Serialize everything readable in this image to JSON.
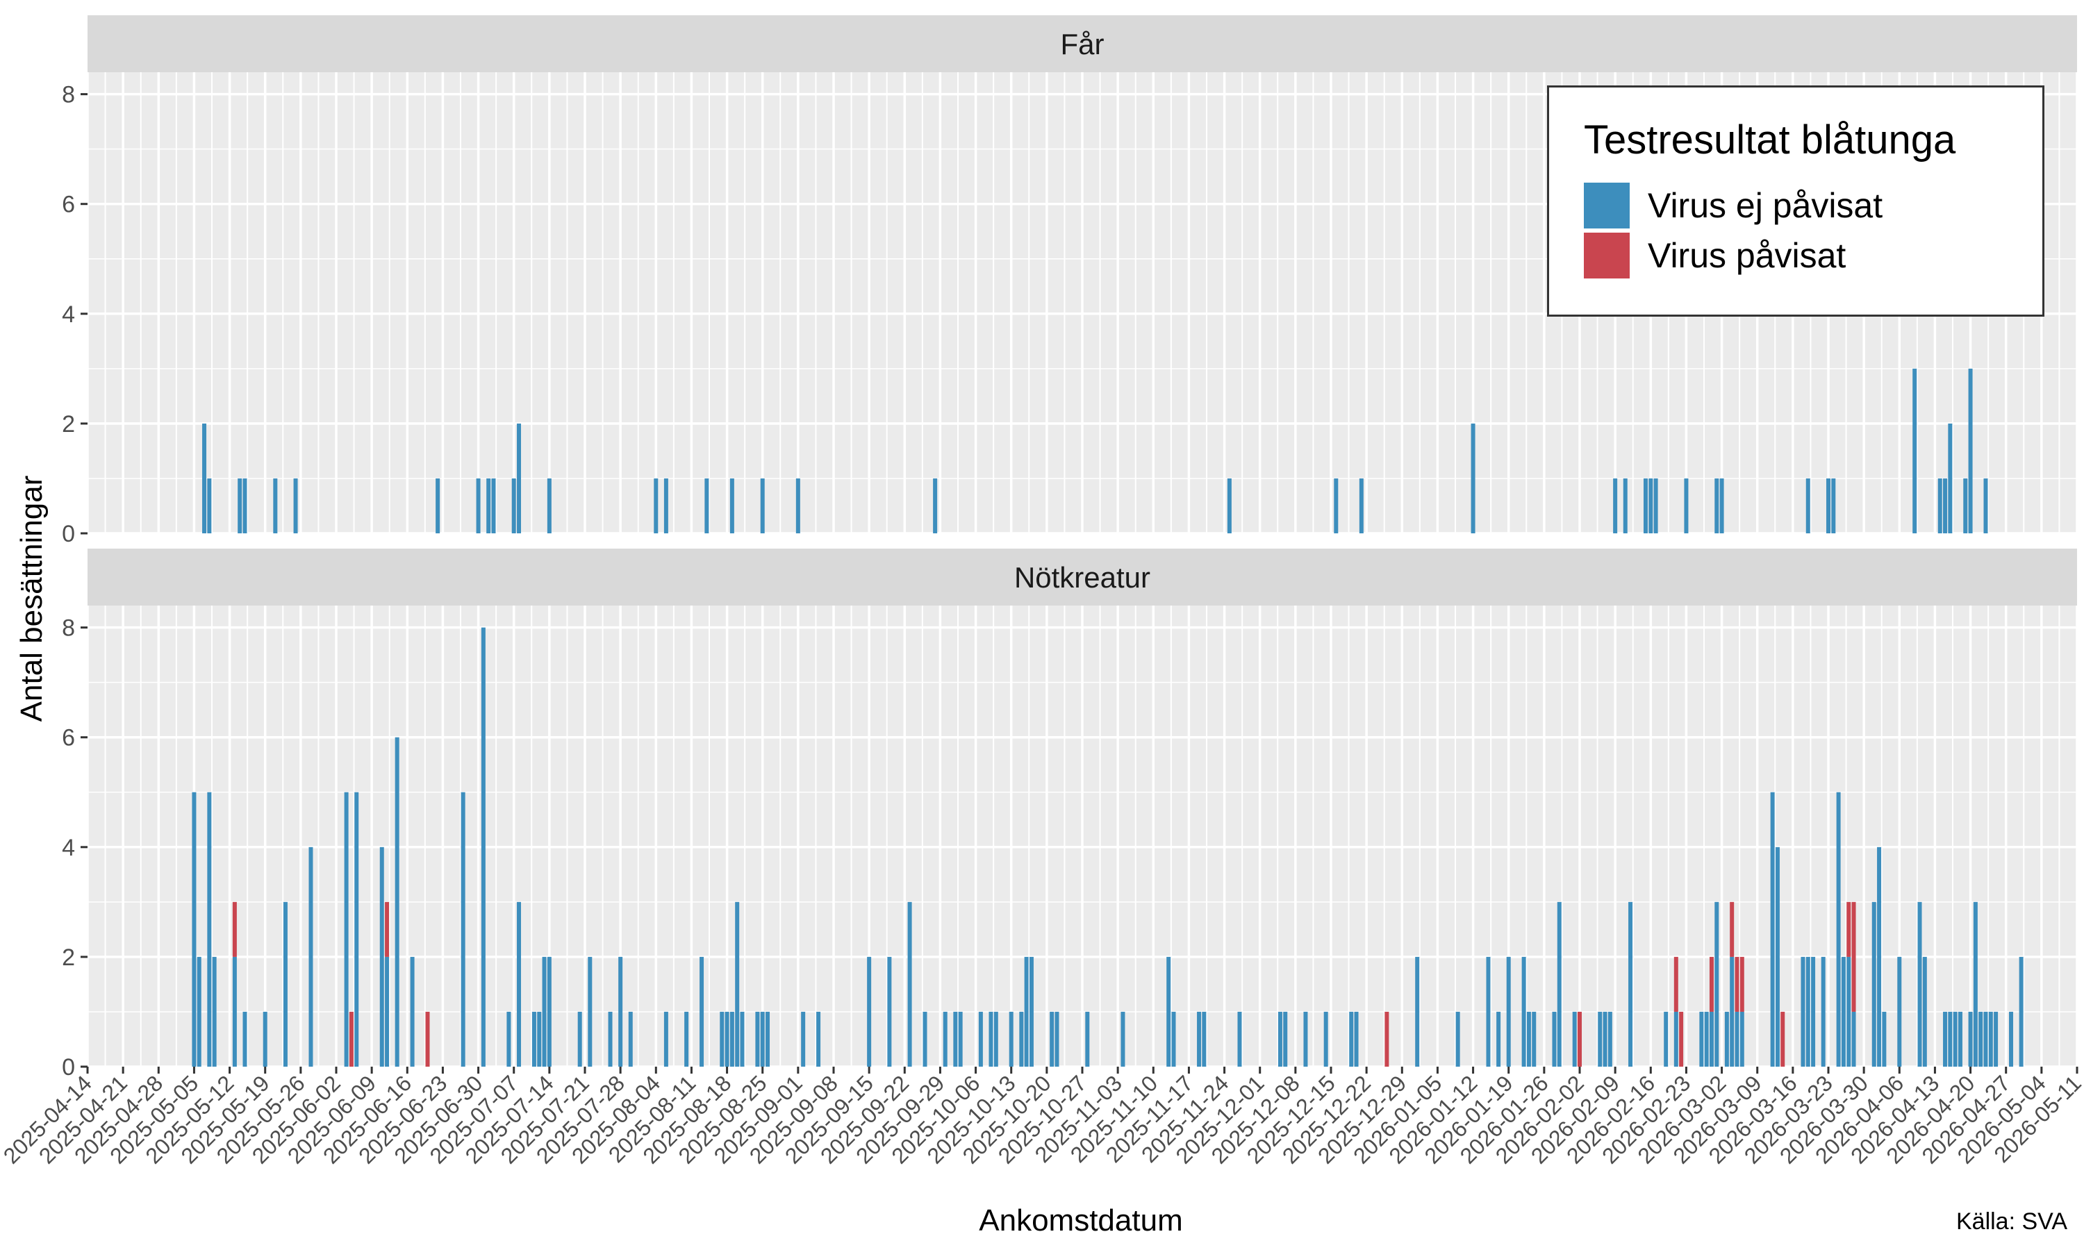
{
  "chart_data": {
    "type": "bar",
    "stacked": true,
    "facet_titles": [
      "Får",
      "Nötkreatur"
    ],
    "xlabel": "Ankomstdatum",
    "ylabel": "Antal besättningar",
    "ylim": [
      0,
      8.4
    ],
    "yticks": [
      0,
      2,
      4,
      6,
      8
    ],
    "xlim": [
      "2025-04-14",
      "2026-05-11"
    ],
    "xticks": [
      "2025-04-14",
      "2025-04-21",
      "2025-04-28",
      "2025-05-05",
      "2025-05-12",
      "2025-05-19",
      "2025-05-26",
      "2025-06-02",
      "2025-06-09",
      "2025-06-16",
      "2025-06-23",
      "2025-06-30",
      "2025-07-07",
      "2025-07-14",
      "2025-07-21",
      "2025-07-28",
      "2025-08-04",
      "2025-08-11",
      "2025-08-18",
      "2025-08-25",
      "2025-09-01",
      "2025-09-08",
      "2025-09-15",
      "2025-09-22",
      "2025-09-29",
      "2025-10-06",
      "2025-10-13",
      "2025-10-20",
      "2025-10-27",
      "2025-11-03",
      "2025-11-10",
      "2025-11-17",
      "2025-11-24",
      "2025-12-01",
      "2025-12-08",
      "2025-12-15",
      "2025-12-22",
      "2025-12-29",
      "2026-01-05",
      "2026-01-12",
      "2026-01-19",
      "2026-01-26",
      "2026-02-02",
      "2026-02-09",
      "2026-02-16",
      "2026-02-23",
      "2026-03-02",
      "2026-03-09",
      "2026-03-16",
      "2026-03-23",
      "2026-03-30",
      "2026-04-06",
      "2026-04-13",
      "2026-04-20",
      "2026-04-27",
      "2026-05-04",
      "2026-05-11"
    ],
    "grid": true,
    "legend_position": "top-right",
    "legend_title": "Testresultat blåtunga",
    "series": [
      {
        "name": "Virus ej påvisat",
        "color": "#3D8EBD"
      },
      {
        "name": "Virus påvisat",
        "color": "#C9454F"
      }
    ],
    "panels": [
      {
        "title": "Får",
        "data": [
          {
            "date": "2025-05-07",
            "neg": 2,
            "pos": 0
          },
          {
            "date": "2025-05-08",
            "neg": 1,
            "pos": 0
          },
          {
            "date": "2025-05-14",
            "neg": 1,
            "pos": 0
          },
          {
            "date": "2025-05-15",
            "neg": 1,
            "pos": 0
          },
          {
            "date": "2025-05-21",
            "neg": 1,
            "pos": 0
          },
          {
            "date": "2025-05-25",
            "neg": 1,
            "pos": 0
          },
          {
            "date": "2025-06-22",
            "neg": 1,
            "pos": 0
          },
          {
            "date": "2025-06-30",
            "neg": 1,
            "pos": 0
          },
          {
            "date": "2025-07-02",
            "neg": 1,
            "pos": 0
          },
          {
            "date": "2025-07-03",
            "neg": 1,
            "pos": 0
          },
          {
            "date": "2025-07-07",
            "neg": 1,
            "pos": 0
          },
          {
            "date": "2025-07-08",
            "neg": 2,
            "pos": 0
          },
          {
            "date": "2025-07-14",
            "neg": 1,
            "pos": 0
          },
          {
            "date": "2025-08-04",
            "neg": 1,
            "pos": 0
          },
          {
            "date": "2025-08-06",
            "neg": 1,
            "pos": 0
          },
          {
            "date": "2025-08-14",
            "neg": 1,
            "pos": 0
          },
          {
            "date": "2025-08-19",
            "neg": 1,
            "pos": 0
          },
          {
            "date": "2025-08-25",
            "neg": 1,
            "pos": 0
          },
          {
            "date": "2025-09-01",
            "neg": 1,
            "pos": 0
          },
          {
            "date": "2025-09-28",
            "neg": 1,
            "pos": 0
          },
          {
            "date": "2025-11-25",
            "neg": 1,
            "pos": 0
          },
          {
            "date": "2025-12-16",
            "neg": 1,
            "pos": 0
          },
          {
            "date": "2025-12-21",
            "neg": 1,
            "pos": 0
          },
          {
            "date": "2026-01-12",
            "neg": 2,
            "pos": 0
          },
          {
            "date": "2026-02-09",
            "neg": 1,
            "pos": 0
          },
          {
            "date": "2026-02-11",
            "neg": 1,
            "pos": 0
          },
          {
            "date": "2026-02-15",
            "neg": 1,
            "pos": 0
          },
          {
            "date": "2026-02-16",
            "neg": 1,
            "pos": 0
          },
          {
            "date": "2026-02-17",
            "neg": 1,
            "pos": 0
          },
          {
            "date": "2026-02-23",
            "neg": 1,
            "pos": 0
          },
          {
            "date": "2026-03-01",
            "neg": 1,
            "pos": 0
          },
          {
            "date": "2026-03-02",
            "neg": 1,
            "pos": 0
          },
          {
            "date": "2026-03-19",
            "neg": 1,
            "pos": 0
          },
          {
            "date": "2026-03-23",
            "neg": 1,
            "pos": 0
          },
          {
            "date": "2026-03-24",
            "neg": 1,
            "pos": 0
          },
          {
            "date": "2026-04-09",
            "neg": 3,
            "pos": 0
          },
          {
            "date": "2026-04-14",
            "neg": 1,
            "pos": 0
          },
          {
            "date": "2026-04-15",
            "neg": 1,
            "pos": 0
          },
          {
            "date": "2026-04-16",
            "neg": 2,
            "pos": 0
          },
          {
            "date": "2026-04-19",
            "neg": 1,
            "pos": 0
          },
          {
            "date": "2026-04-20",
            "neg": 3,
            "pos": 0
          },
          {
            "date": "2026-04-23",
            "neg": 1,
            "pos": 0
          }
        ]
      },
      {
        "title": "Nötkreatur",
        "data": [
          {
            "date": "2025-05-05",
            "neg": 5,
            "pos": 0
          },
          {
            "date": "2025-05-06",
            "neg": 2,
            "pos": 0
          },
          {
            "date": "2025-05-08",
            "neg": 5,
            "pos": 0
          },
          {
            "date": "2025-05-09",
            "neg": 2,
            "pos": 0
          },
          {
            "date": "2025-05-13",
            "neg": 2,
            "pos": 1
          },
          {
            "date": "2025-05-15",
            "neg": 1,
            "pos": 0
          },
          {
            "date": "2025-05-19",
            "neg": 1,
            "pos": 0
          },
          {
            "date": "2025-05-23",
            "neg": 3,
            "pos": 0
          },
          {
            "date": "2025-05-28",
            "neg": 4,
            "pos": 0
          },
          {
            "date": "2025-06-04",
            "neg": 5,
            "pos": 0
          },
          {
            "date": "2025-06-05",
            "neg": 0,
            "pos": 1
          },
          {
            "date": "2025-06-06",
            "neg": 5,
            "pos": 0
          },
          {
            "date": "2025-06-11",
            "neg": 4,
            "pos": 0
          },
          {
            "date": "2025-06-12",
            "neg": 2,
            "pos": 1
          },
          {
            "date": "2025-06-14",
            "neg": 6,
            "pos": 0
          },
          {
            "date": "2025-06-17",
            "neg": 2,
            "pos": 0
          },
          {
            "date": "2025-06-20",
            "neg": 0,
            "pos": 1
          },
          {
            "date": "2025-06-27",
            "neg": 5,
            "pos": 0
          },
          {
            "date": "2025-07-01",
            "neg": 8,
            "pos": 0
          },
          {
            "date": "2025-07-06",
            "neg": 1,
            "pos": 0
          },
          {
            "date": "2025-07-08",
            "neg": 3,
            "pos": 0
          },
          {
            "date": "2025-07-11",
            "neg": 1,
            "pos": 0
          },
          {
            "date": "2025-07-12",
            "neg": 1,
            "pos": 0
          },
          {
            "date": "2025-07-13",
            "neg": 2,
            "pos": 0
          },
          {
            "date": "2025-07-14",
            "neg": 2,
            "pos": 0
          },
          {
            "date": "2025-07-20",
            "neg": 1,
            "pos": 0
          },
          {
            "date": "2025-07-22",
            "neg": 2,
            "pos": 0
          },
          {
            "date": "2025-07-26",
            "neg": 1,
            "pos": 0
          },
          {
            "date": "2025-07-28",
            "neg": 2,
            "pos": 0
          },
          {
            "date": "2025-07-30",
            "neg": 1,
            "pos": 0
          },
          {
            "date": "2025-08-06",
            "neg": 1,
            "pos": 0
          },
          {
            "date": "2025-08-10",
            "neg": 1,
            "pos": 0
          },
          {
            "date": "2025-08-13",
            "neg": 2,
            "pos": 0
          },
          {
            "date": "2025-08-17",
            "neg": 1,
            "pos": 0
          },
          {
            "date": "2025-08-18",
            "neg": 1,
            "pos": 0
          },
          {
            "date": "2025-08-19",
            "neg": 1,
            "pos": 0
          },
          {
            "date": "2025-08-20",
            "neg": 3,
            "pos": 0
          },
          {
            "date": "2025-08-21",
            "neg": 1,
            "pos": 0
          },
          {
            "date": "2025-08-24",
            "neg": 1,
            "pos": 0
          },
          {
            "date": "2025-08-25",
            "neg": 1,
            "pos": 0
          },
          {
            "date": "2025-08-26",
            "neg": 1,
            "pos": 0
          },
          {
            "date": "2025-09-02",
            "neg": 1,
            "pos": 0
          },
          {
            "date": "2025-09-05",
            "neg": 1,
            "pos": 0
          },
          {
            "date": "2025-09-15",
            "neg": 2,
            "pos": 0
          },
          {
            "date": "2025-09-19",
            "neg": 2,
            "pos": 0
          },
          {
            "date": "2025-09-23",
            "neg": 3,
            "pos": 0
          },
          {
            "date": "2025-09-26",
            "neg": 1,
            "pos": 0
          },
          {
            "date": "2025-09-30",
            "neg": 1,
            "pos": 0
          },
          {
            "date": "2025-10-02",
            "neg": 1,
            "pos": 0
          },
          {
            "date": "2025-10-03",
            "neg": 1,
            "pos": 0
          },
          {
            "date": "2025-10-07",
            "neg": 1,
            "pos": 0
          },
          {
            "date": "2025-10-09",
            "neg": 1,
            "pos": 0
          },
          {
            "date": "2025-10-10",
            "neg": 1,
            "pos": 0
          },
          {
            "date": "2025-10-13",
            "neg": 1,
            "pos": 0
          },
          {
            "date": "2025-10-15",
            "neg": 1,
            "pos": 0
          },
          {
            "date": "2025-10-16",
            "neg": 2,
            "pos": 0
          },
          {
            "date": "2025-10-17",
            "neg": 2,
            "pos": 0
          },
          {
            "date": "2025-10-21",
            "neg": 1,
            "pos": 0
          },
          {
            "date": "2025-10-22",
            "neg": 1,
            "pos": 0
          },
          {
            "date": "2025-10-28",
            "neg": 1,
            "pos": 0
          },
          {
            "date": "2025-11-04",
            "neg": 1,
            "pos": 0
          },
          {
            "date": "2025-11-13",
            "neg": 2,
            "pos": 0
          },
          {
            "date": "2025-11-14",
            "neg": 1,
            "pos": 0
          },
          {
            "date": "2025-11-19",
            "neg": 1,
            "pos": 0
          },
          {
            "date": "2025-11-20",
            "neg": 1,
            "pos": 0
          },
          {
            "date": "2025-11-27",
            "neg": 1,
            "pos": 0
          },
          {
            "date": "2025-12-05",
            "neg": 1,
            "pos": 0
          },
          {
            "date": "2025-12-06",
            "neg": 1,
            "pos": 0
          },
          {
            "date": "2025-12-10",
            "neg": 1,
            "pos": 0
          },
          {
            "date": "2025-12-14",
            "neg": 1,
            "pos": 0
          },
          {
            "date": "2025-12-19",
            "neg": 1,
            "pos": 0
          },
          {
            "date": "2025-12-20",
            "neg": 1,
            "pos": 0
          },
          {
            "date": "2025-12-26",
            "neg": 0,
            "pos": 1
          },
          {
            "date": "2026-01-01",
            "neg": 2,
            "pos": 0
          },
          {
            "date": "2026-01-09",
            "neg": 1,
            "pos": 0
          },
          {
            "date": "2026-01-15",
            "neg": 2,
            "pos": 0
          },
          {
            "date": "2026-01-17",
            "neg": 1,
            "pos": 0
          },
          {
            "date": "2026-01-19",
            "neg": 2,
            "pos": 0
          },
          {
            "date": "2026-01-22",
            "neg": 2,
            "pos": 0
          },
          {
            "date": "2026-01-23",
            "neg": 1,
            "pos": 0
          },
          {
            "date": "2026-01-24",
            "neg": 1,
            "pos": 0
          },
          {
            "date": "2026-01-28",
            "neg": 1,
            "pos": 0
          },
          {
            "date": "2026-01-29",
            "neg": 3,
            "pos": 0
          },
          {
            "date": "2026-02-01",
            "neg": 1,
            "pos": 0
          },
          {
            "date": "2026-02-02",
            "neg": 0,
            "pos": 1
          },
          {
            "date": "2026-02-06",
            "neg": 1,
            "pos": 0
          },
          {
            "date": "2026-02-07",
            "neg": 1,
            "pos": 0
          },
          {
            "date": "2026-02-08",
            "neg": 1,
            "pos": 0
          },
          {
            "date": "2026-02-12",
            "neg": 3,
            "pos": 0
          },
          {
            "date": "2026-02-19",
            "neg": 1,
            "pos": 0
          },
          {
            "date": "2026-02-21",
            "neg": 1,
            "pos": 1
          },
          {
            "date": "2026-02-22",
            "neg": 0,
            "pos": 1
          },
          {
            "date": "2026-02-26",
            "neg": 1,
            "pos": 0
          },
          {
            "date": "2026-02-27",
            "neg": 1,
            "pos": 0
          },
          {
            "date": "2026-02-28",
            "neg": 1,
            "pos": 1
          },
          {
            "date": "2026-03-01",
            "neg": 3,
            "pos": 0
          },
          {
            "date": "2026-03-03",
            "neg": 1,
            "pos": 0
          },
          {
            "date": "2026-03-04",
            "neg": 2,
            "pos": 1
          },
          {
            "date": "2026-03-05",
            "neg": 1,
            "pos": 1
          },
          {
            "date": "2026-03-06",
            "neg": 1,
            "pos": 1
          },
          {
            "date": "2026-03-12",
            "neg": 5,
            "pos": 0
          },
          {
            "date": "2026-03-13",
            "neg": 4,
            "pos": 0
          },
          {
            "date": "2026-03-14",
            "neg": 0,
            "pos": 1
          },
          {
            "date": "2026-03-18",
            "neg": 2,
            "pos": 0
          },
          {
            "date": "2026-03-19",
            "neg": 2,
            "pos": 0
          },
          {
            "date": "2026-03-20",
            "neg": 2,
            "pos": 0
          },
          {
            "date": "2026-03-22",
            "neg": 2,
            "pos": 0
          },
          {
            "date": "2026-03-25",
            "neg": 5,
            "pos": 0
          },
          {
            "date": "2026-03-26",
            "neg": 2,
            "pos": 0
          },
          {
            "date": "2026-03-27",
            "neg": 2,
            "pos": 1
          },
          {
            "date": "2026-03-28",
            "neg": 1,
            "pos": 2
          },
          {
            "date": "2026-04-01",
            "neg": 3,
            "pos": 0
          },
          {
            "date": "2026-04-02",
            "neg": 4,
            "pos": 0
          },
          {
            "date": "2026-04-03",
            "neg": 1,
            "pos": 0
          },
          {
            "date": "2026-04-06",
            "neg": 2,
            "pos": 0
          },
          {
            "date": "2026-04-10",
            "neg": 3,
            "pos": 0
          },
          {
            "date": "2026-04-11",
            "neg": 2,
            "pos": 0
          },
          {
            "date": "2026-04-15",
            "neg": 1,
            "pos": 0
          },
          {
            "date": "2026-04-16",
            "neg": 1,
            "pos": 0
          },
          {
            "date": "2026-04-17",
            "neg": 1,
            "pos": 0
          },
          {
            "date": "2026-04-18",
            "neg": 1,
            "pos": 0
          },
          {
            "date": "2026-04-20",
            "neg": 1,
            "pos": 0
          },
          {
            "date": "2026-04-21",
            "neg": 3,
            "pos": 0
          },
          {
            "date": "2026-04-22",
            "neg": 1,
            "pos": 0
          },
          {
            "date": "2026-04-23",
            "neg": 1,
            "pos": 0
          },
          {
            "date": "2026-04-24",
            "neg": 1,
            "pos": 0
          },
          {
            "date": "2026-04-25",
            "neg": 1,
            "pos": 0
          },
          {
            "date": "2026-04-28",
            "neg": 1,
            "pos": 0
          },
          {
            "date": "2026-04-30",
            "neg": 2,
            "pos": 0
          }
        ]
      }
    ]
  },
  "source_label": "Källa: SVA"
}
